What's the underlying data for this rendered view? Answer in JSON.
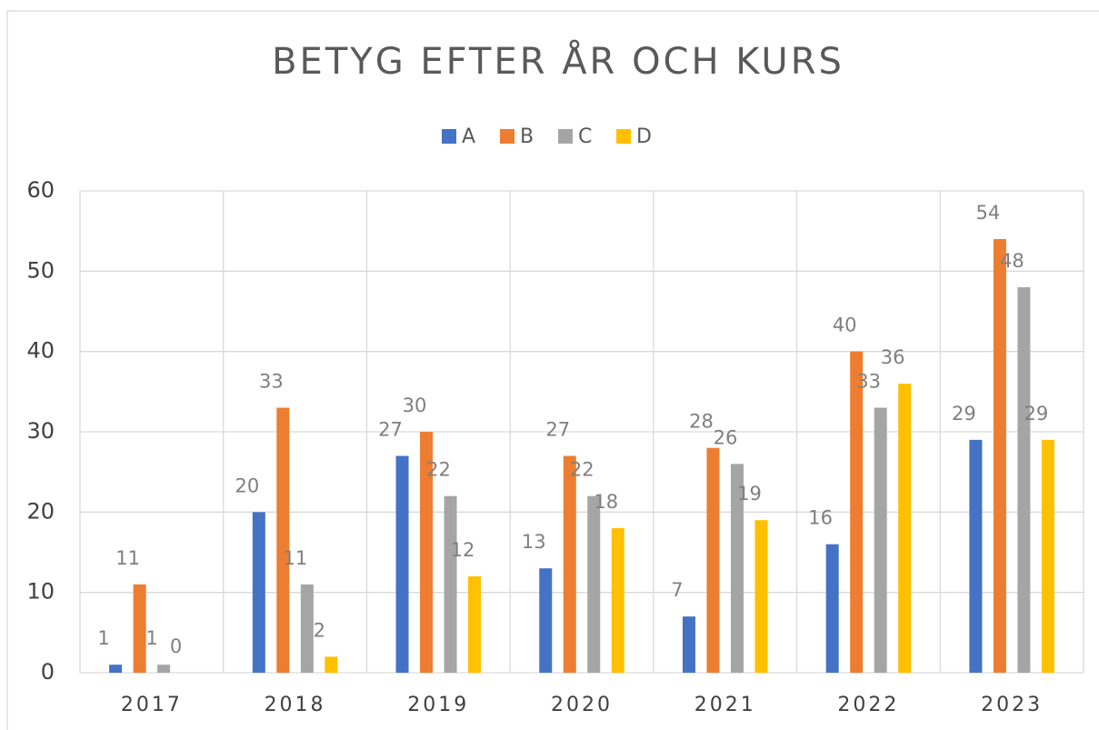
{
  "chart_data": {
    "type": "bar",
    "title": "BETYG EFTER ÅR OCH KURS",
    "categories": [
      "2017",
      "2018",
      "2019",
      "2020",
      "2021",
      "2022",
      "2023"
    ],
    "series": [
      {
        "name": "A",
        "color": "#4472c4",
        "values": [
          1,
          20,
          27,
          13,
          7,
          16,
          29
        ]
      },
      {
        "name": "B",
        "color": "#ed7d31",
        "values": [
          11,
          33,
          30,
          27,
          28,
          40,
          54
        ]
      },
      {
        "name": "C",
        "color": "#a5a5a5",
        "values": [
          1,
          11,
          22,
          22,
          26,
          33,
          48
        ]
      },
      {
        "name": "D",
        "color": "#ffc000",
        "values": [
          0,
          2,
          12,
          18,
          19,
          36,
          29
        ]
      }
    ],
    "ylim": [
      0,
      60
    ],
    "yticks": [
      0,
      10,
      20,
      30,
      40,
      50,
      60
    ],
    "grid": true,
    "legend": "top"
  }
}
